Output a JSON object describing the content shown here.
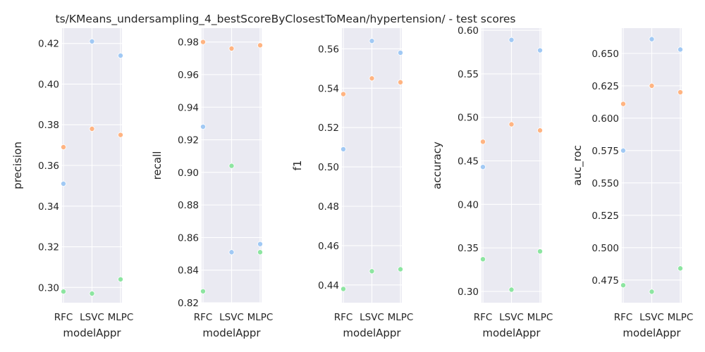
{
  "figure": {
    "title": "ts/KMeans_undersampling_4_bestScoreByClosestToMean/hypertension/ - test scores"
  },
  "colors": {
    "series_blue": "#a1c9f4",
    "series_orange": "#ffb482",
    "series_green": "#8de5a1",
    "panel_background": "#eaeaf2",
    "grid": "#ffffff",
    "text": "#262626"
  },
  "chart_data": [
    {
      "type": "scatter",
      "xlabel": "modelAppr",
      "ylabel": "precision",
      "categories": [
        "RFC",
        "LSVC",
        "MLPC"
      ],
      "ylim": [
        0.2925,
        0.4275
      ],
      "yticks": [
        0.3,
        0.32,
        0.34,
        0.36,
        0.38,
        0.4,
        0.42
      ],
      "ytick_labels": [
        "0.30",
        "0.32",
        "0.34",
        "0.36",
        "0.38",
        "0.40",
        "0.42"
      ],
      "grid": true,
      "series": [
        {
          "color": "#a1c9f4",
          "values": [
            0.351,
            0.421,
            0.414
          ]
        },
        {
          "color": "#ffb482",
          "values": [
            0.369,
            0.378,
            0.375
          ]
        },
        {
          "color": "#8de5a1",
          "values": [
            0.298,
            0.297,
            0.304
          ]
        }
      ]
    },
    {
      "type": "scatter",
      "xlabel": "modelAppr",
      "ylabel": "recall",
      "categories": [
        "RFC",
        "LSVC",
        "MLPC"
      ],
      "ylim": [
        0.82,
        0.9885
      ],
      "yticks": [
        0.82,
        0.84,
        0.86,
        0.88,
        0.9,
        0.92,
        0.94,
        0.96,
        0.98
      ],
      "ytick_labels": [
        "0.82",
        "0.84",
        "0.86",
        "0.88",
        "0.90",
        "0.92",
        "0.94",
        "0.96",
        "0.98"
      ],
      "grid": true,
      "series": [
        {
          "color": "#a1c9f4",
          "values": [
            0.928,
            0.851,
            0.856
          ]
        },
        {
          "color": "#ffb482",
          "values": [
            0.98,
            0.976,
            0.978
          ]
        },
        {
          "color": "#8de5a1",
          "values": [
            0.827,
            0.904,
            0.851
          ]
        }
      ]
    },
    {
      "type": "scatter",
      "xlabel": "modelAppr",
      "ylabel": "f1",
      "categories": [
        "RFC",
        "LSVC",
        "MLPC"
      ],
      "ylim": [
        0.431,
        0.5705
      ],
      "yticks": [
        0.44,
        0.46,
        0.48,
        0.5,
        0.52,
        0.54,
        0.56
      ],
      "ytick_labels": [
        "0.44",
        "0.46",
        "0.48",
        "0.50",
        "0.52",
        "0.54",
        "0.56"
      ],
      "grid": true,
      "series": [
        {
          "color": "#a1c9f4",
          "values": [
            0.509,
            0.564,
            0.558
          ]
        },
        {
          "color": "#ffb482",
          "values": [
            0.537,
            0.545,
            0.543
          ]
        },
        {
          "color": "#8de5a1",
          "values": [
            0.438,
            0.447,
            0.448
          ]
        }
      ]
    },
    {
      "type": "scatter",
      "xlabel": "modelAppr",
      "ylabel": "accuracy",
      "categories": [
        "RFC",
        "LSVC",
        "MLPC"
      ],
      "ylim": [
        0.287,
        0.6025
      ],
      "yticks": [
        0.3,
        0.35,
        0.4,
        0.45,
        0.5,
        0.55,
        0.6
      ],
      "ytick_labels": [
        "0.30",
        "0.35",
        "0.40",
        "0.45",
        "0.50",
        "0.55",
        "0.60"
      ],
      "grid": true,
      "series": [
        {
          "color": "#a1c9f4",
          "values": [
            0.443,
            0.589,
            0.577
          ]
        },
        {
          "color": "#ffb482",
          "values": [
            0.472,
            0.492,
            0.485
          ]
        },
        {
          "color": "#8de5a1",
          "values": [
            0.337,
            0.302,
            0.346
          ]
        }
      ]
    },
    {
      "type": "scatter",
      "xlabel": "modelAppr",
      "ylabel": "auc_roc",
      "categories": [
        "RFC",
        "LSVC",
        "MLPC"
      ],
      "ylim": [
        0.4575,
        0.6695
      ],
      "yticks": [
        0.475,
        0.5,
        0.525,
        0.55,
        0.575,
        0.6,
        0.625,
        0.65
      ],
      "ytick_labels": [
        "0.475",
        "0.500",
        "0.525",
        "0.550",
        "0.575",
        "0.600",
        "0.625",
        "0.650"
      ],
      "grid": true,
      "series": [
        {
          "color": "#a1c9f4",
          "values": [
            0.575,
            0.661,
            0.653
          ]
        },
        {
          "color": "#ffb482",
          "values": [
            0.611,
            0.625,
            0.62
          ]
        },
        {
          "color": "#8de5a1",
          "values": [
            0.471,
            0.466,
            0.484
          ]
        }
      ]
    }
  ]
}
